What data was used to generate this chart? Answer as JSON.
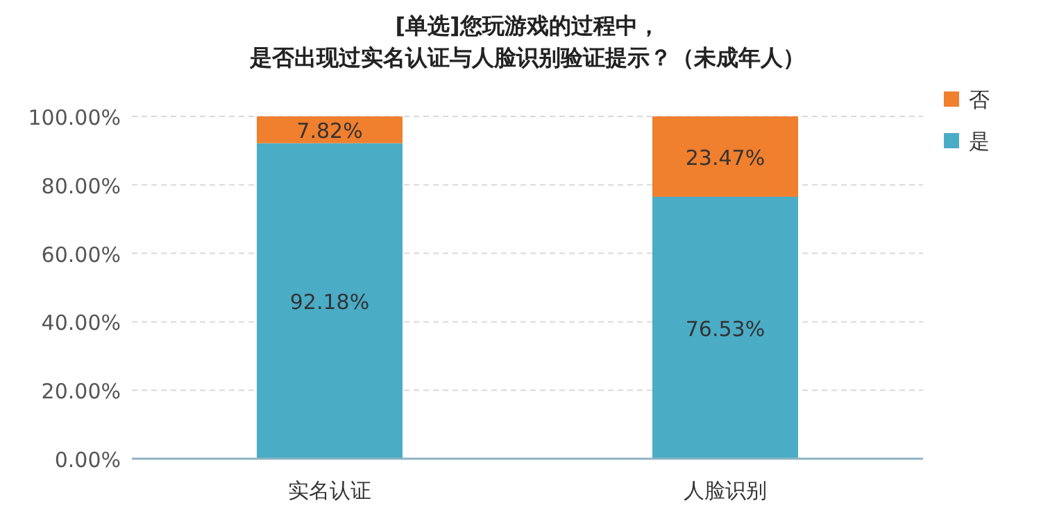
{
  "chart_data": {
    "type": "bar",
    "stacked": true,
    "title": "[单选]您玩游戏的过程中，",
    "subtitle": "是否出现过实名认证与人脸识别验证提示？（未成年人）",
    "categories": [
      "实名认证",
      "人脸识别"
    ],
    "series": [
      {
        "name": "是",
        "color": "#4bacc6",
        "values": [
          92.18,
          76.53
        ],
        "value_labels": [
          "92.18%",
          "76.53%"
        ]
      },
      {
        "name": "否",
        "color": "#f07f2e",
        "values": [
          7.82,
          23.47
        ],
        "value_labels": [
          "7.82%",
          "23.47%"
        ]
      }
    ],
    "ylim": [
      0,
      100
    ],
    "yticks": [
      {
        "value": 0,
        "label": "0.00%"
      },
      {
        "value": 20,
        "label": "20.00%"
      },
      {
        "value": 40,
        "label": "40.00%"
      },
      {
        "value": 60,
        "label": "60.00%"
      },
      {
        "value": 80,
        "label": "80.00%"
      },
      {
        "value": 100,
        "label": "100.00%"
      }
    ],
    "grid": "y",
    "legend": "top right"
  }
}
